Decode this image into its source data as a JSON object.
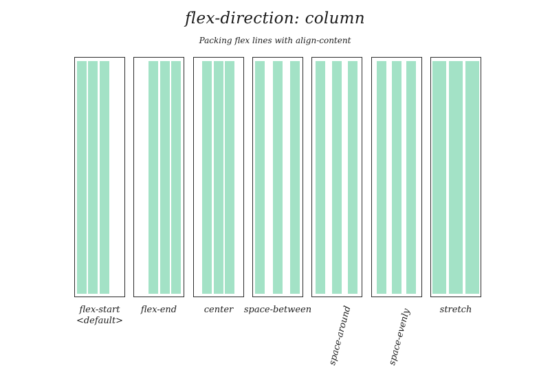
{
  "title": "flex-direction: column",
  "subtitle": "Packing flex lines with align-content",
  "item_color": "#a3e2c6",
  "border_color": "#2a2a2a",
  "panels": [
    {
      "key": "flex-start",
      "label_lines": [
        "flex-start",
        "<default>"
      ],
      "rotated": false
    },
    {
      "key": "flex-end",
      "label_lines": [
        "flex-end"
      ],
      "rotated": false
    },
    {
      "key": "center",
      "label_lines": [
        "center"
      ],
      "rotated": false
    },
    {
      "key": "space-between",
      "label_lines": [
        "space-between"
      ],
      "rotated": false
    },
    {
      "key": "space-around",
      "label_lines": [
        "space-around"
      ],
      "rotated": true
    },
    {
      "key": "space-evenly",
      "label_lines": [
        "space-evenly"
      ],
      "rotated": true
    },
    {
      "key": "stretch",
      "label_lines": [
        "stretch"
      ],
      "rotated": false
    }
  ]
}
